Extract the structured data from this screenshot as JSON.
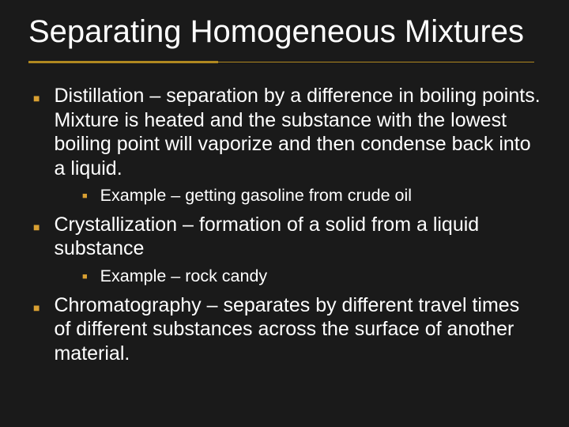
{
  "slide": {
    "background_color": "#1a1a1a",
    "text_color": "#ffffff",
    "accent_color": "#d9a032",
    "rule_color": "#b08820",
    "title_fontsize": 40,
    "body_fontsize": 25,
    "sub_fontsize": 21.5,
    "font_family": "Arial"
  },
  "title": "Separating Homogeneous Mixtures",
  "bullets": {
    "b0": "Distillation – separation by a difference in boiling points.  Mixture is heated and the substance with the lowest boiling point will vaporize and then condense back into a liquid.",
    "b0_s0": "Example – getting gasoline from crude oil",
    "b1": "Crystallization – formation of a solid from a liquid substance",
    "b1_s0": "Example – rock candy",
    "b2": "Chromatography – separates by different travel times of different substances across the surface of another material."
  }
}
